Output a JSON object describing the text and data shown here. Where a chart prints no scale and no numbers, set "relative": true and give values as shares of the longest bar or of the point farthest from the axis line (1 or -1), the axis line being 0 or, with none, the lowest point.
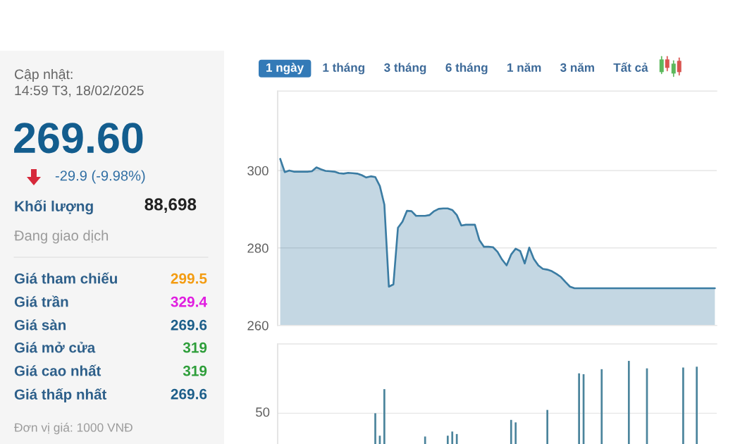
{
  "chart_data": [
    {
      "type": "other",
      "annotations": [
        "Cập nhật:",
        "14:59 T3, 18/02/2025",
        "269.60",
        "-29.9 (-9.98%)",
        "Khối lượng",
        "88,698",
        "Đang giao dịch",
        "Giá tham chiếu",
        "299.5",
        "Giá trần",
        "329.4",
        "Giá sàn",
        "269.6",
        "Giá mở cửa",
        "319",
        "Giá cao nhất",
        "319",
        "Giá thấp nhất",
        "269.6",
        "Đơn vị giá: 1000 VNĐ"
      ]
    },
    {
      "type": "area",
      "annotations": [
        "1 ngày",
        "1 tháng",
        "3 tháng",
        "6 tháng",
        "1 năm",
        "3 năm",
        "Tất cả"
      ],
      "categories": [
        null,
        null,
        null,
        null,
        null,
        null,
        null,
        null,
        null,
        null,
        null,
        null,
        null,
        null,
        null,
        null,
        null,
        null,
        null,
        null,
        null,
        null,
        null,
        null,
        null,
        null,
        null,
        null,
        null,
        null,
        null,
        null,
        null,
        null,
        null,
        null,
        null,
        null,
        null,
        null,
        null,
        null,
        null,
        null,
        null,
        null,
        null,
        null,
        null,
        null,
        null,
        null,
        null,
        null,
        null,
        null,
        null,
        null,
        null,
        null,
        null,
        null,
        null,
        null,
        null,
        null,
        null,
        null,
        null,
        null,
        null,
        null,
        null,
        null,
        null,
        null,
        null,
        null,
        null,
        null,
        null,
        null,
        null,
        null,
        null,
        null,
        null,
        null,
        null,
        null,
        null,
        null,
        null,
        null,
        null,
        null,
        null
      ],
      "series": [
        {
          "color": "#3b7ca3",
          "values": [
            303.0,
            299.6,
            300.0,
            299.7,
            299.7,
            299.7,
            299.7,
            299.8,
            300.8,
            300.3,
            299.9,
            299.8,
            299.7,
            299.3,
            299.2,
            299.4,
            299.3,
            299.2,
            298.8,
            298.2,
            298.5,
            298.3,
            296.0,
            291.2,
            270.0,
            270.6,
            285.2,
            286.8,
            289.6,
            289.5,
            288.3,
            288.3,
            288.3,
            288.5,
            289.5,
            290.1,
            290.2,
            290.2,
            289.8,
            288.5,
            285.8,
            286.0,
            286.0,
            286.0,
            282.0,
            280.3,
            280.3,
            280.2,
            279.0,
            277.0,
            275.5,
            278.3,
            279.8,
            279.2,
            276.0,
            280.1,
            277.2,
            275.5,
            274.6,
            274.4,
            274.0,
            273.3,
            272.5,
            271.2,
            270.0,
            269.6,
            269.6,
            269.6,
            269.6,
            269.6,
            269.6,
            269.6,
            269.6,
            269.6,
            269.6,
            269.6,
            269.6,
            269.6,
            269.6,
            269.6,
            269.6,
            269.6,
            269.6,
            269.6,
            269.6,
            269.6,
            269.6,
            269.6,
            269.6,
            269.6,
            269.6,
            269.6,
            269.6,
            269.6,
            269.6,
            269.6,
            269.6
          ]
        }
      ],
      "ylim": [
        260,
        320.5
      ],
      "yticks": [
        260,
        280,
        300
      ],
      "grid": "y",
      "tick_labels": "y"
    },
    {
      "type": "bar",
      "relative": true,
      "tick_labels": false,
      "annotations": [
        "50"
      ],
      "categories": [
        null,
        null,
        null,
        null,
        null,
        null,
        null,
        null,
        null,
        null,
        null,
        null,
        null,
        null,
        null,
        null,
        null,
        null,
        null,
        null,
        null,
        null,
        null,
        null,
        null,
        null,
        null,
        null,
        null,
        null,
        null,
        null,
        null,
        null,
        null,
        null,
        null,
        null,
        null,
        null,
        null,
        null,
        null,
        null,
        null,
        null,
        null,
        null,
        null,
        null,
        null,
        null,
        null,
        null,
        null,
        null,
        null,
        null,
        null,
        null,
        null,
        null,
        null,
        null,
        null,
        null,
        null,
        null,
        null,
        null,
        null,
        null,
        null,
        null,
        null,
        null,
        null,
        null,
        null,
        null,
        null,
        null,
        null,
        null,
        null,
        null,
        null,
        null,
        null,
        null,
        null,
        null,
        null,
        null,
        null,
        null,
        null
      ],
      "series": [
        {
          "color": "#4b849c",
          "values": [
            null,
            null,
            null,
            null,
            null,
            null,
            null,
            null,
            null,
            null,
            null,
            null,
            null,
            null,
            null,
            null,
            null,
            null,
            null,
            null,
            null,
            0.37,
            0.1,
            0.66,
            null,
            null,
            null,
            null,
            null,
            null,
            null,
            null,
            0.09,
            null,
            null,
            null,
            null,
            0.1,
            0.15,
            0.12,
            null,
            null,
            null,
            null,
            null,
            null,
            null,
            null,
            null,
            null,
            null,
            0.29,
            0.26,
            null,
            null,
            null,
            null,
            null,
            null,
            0.41,
            null,
            null,
            null,
            null,
            null,
            null,
            0.85,
            0.84,
            null,
            null,
            null,
            0.9,
            null,
            null,
            null,
            null,
            null,
            1,
            null,
            null,
            null,
            0.91,
            null,
            null,
            null,
            null,
            null,
            null,
            null,
            0.92,
            null,
            null,
            0.93,
            null,
            null,
            null,
            null
          ]
        }
      ],
      "ref_lines": [
        {
          "axis": "y",
          "value": 0.37,
          "color": "#e6e6e6"
        }
      ]
    }
  ]
}
